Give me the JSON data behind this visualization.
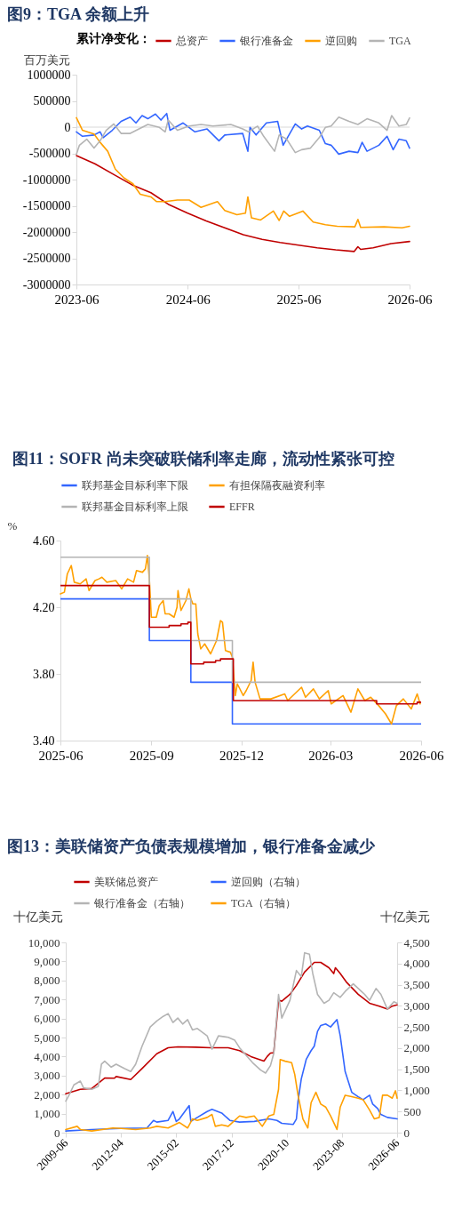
{
  "chart_data": [
    {
      "type": "line",
      "title": "图9：TGA 余额上升",
      "ylabel": "百万美元",
      "legend_title": "累计净变化：",
      "legend": "top",
      "xlim": [
        "2023-06",
        "2026-06"
      ],
      "xticks": [
        "2023-06",
        "2024-06",
        "2025-06",
        "2026-06"
      ],
      "ylim": [
        -3000000,
        1000000
      ],
      "yticks": [
        -3000000,
        -2500000,
        -2000000,
        -1500000,
        -1000000,
        -500000,
        0,
        500000,
        1000000
      ],
      "ref_lines": [
        {
          "axis": "y",
          "value": 0,
          "color": "#d9d9d9"
        }
      ],
      "series": [
        {
          "name": "总资产",
          "color": "#c00000",
          "x": [
            "2023-06-01",
            "2023-08-01",
            "2023-10-01",
            "2023-12-01",
            "2024-02-01",
            "2024-04-01",
            "2024-06-01",
            "2024-08-01",
            "2024-10-01",
            "2024-12-01",
            "2025-02-01",
            "2025-04-01",
            "2025-06-01",
            "2025-08-01",
            "2025-10-01",
            "2025-12-01",
            "2025-12-13",
            "2025-12-22",
            "2026-02-01",
            "2026-04-01",
            "2026-06-01"
          ],
          "values": [
            -542000,
            -700000,
            -900000,
            -1100000,
            -1250000,
            -1480000,
            -1640000,
            -1790000,
            -1920000,
            -2050000,
            -2140000,
            -2200000,
            -2250000,
            -2300000,
            -2340000,
            -2370000,
            -2280000,
            -2330000,
            -2300000,
            -2220000,
            -2180000
          ]
        },
        {
          "name": "银行准备金",
          "color": "#3366ff",
          "x": [
            "2023-06-01",
            "2023-06-21",
            "2023-07-29",
            "2023-08-18",
            "2023-08-28",
            "2023-09-27",
            "2023-10-26",
            "2023-11-25",
            "2023-12-14",
            "2024-01-03",
            "2024-01-22",
            "2024-02-16",
            "2024-03-05",
            "2024-03-24",
            "2024-04-04",
            "2024-05-17",
            "2024-06-25",
            "2024-08-04",
            "2024-09-12",
            "2024-10-01",
            "2024-11-29",
            "2024-12-16",
            "2024-12-23",
            "2025-01-12",
            "2025-02-15",
            "2025-03-24",
            "2025-04-11",
            "2025-05-21",
            "2025-06-11",
            "2025-06-30",
            "2025-08-08",
            "2025-08-28",
            "2025-09-16",
            "2025-10-11",
            "2025-11-14",
            "2025-12-13",
            "2025-12-27",
            "2026-01-12",
            "2026-02-20",
            "2026-03-19",
            "2026-04-08",
            "2026-04-27",
            "2026-05-21",
            "2026-06-01"
          ],
          "values": [
            -90000,
            -175000,
            -150000,
            -90000,
            -200000,
            -60000,
            110000,
            190000,
            80000,
            220000,
            160000,
            250000,
            135000,
            260000,
            -60000,
            80000,
            -90000,
            -35000,
            -260000,
            -150000,
            -120000,
            -460000,
            -5000,
            -150000,
            80000,
            110000,
            -345000,
            60000,
            -35000,
            20000,
            -60000,
            -315000,
            -345000,
            -515000,
            -460000,
            -485000,
            -290000,
            -460000,
            -345000,
            -175000,
            -430000,
            -230000,
            -260000,
            -400000
          ]
        },
        {
          "name": "逆回购",
          "color": "#ffa000",
          "x": [
            "2023-06-01",
            "2023-06-21",
            "2023-07-29",
            "2023-08-18",
            "2023-09-12",
            "2023-10-07",
            "2023-11-05",
            "2023-12-04",
            "2023-12-28",
            "2024-02-01",
            "2024-02-20",
            "2024-03-19",
            "2024-04-28",
            "2024-06-06",
            "2024-07-15",
            "2024-09-07",
            "2024-10-01",
            "2024-11-10",
            "2024-12-08",
            "2024-12-16",
            "2024-12-28",
            "2025-01-27",
            "2025-03-10",
            "2025-03-29",
            "2025-04-13",
            "2025-05-02",
            "2025-06-15",
            "2025-07-19",
            "2025-08-28",
            "2025-10-06",
            "2025-12-03",
            "2025-12-13",
            "2025-12-22",
            "2026-03-09",
            "2026-05-07",
            "2026-06-01"
          ],
          "values": [
            180000,
            -60000,
            -130000,
            -290000,
            -460000,
            -800000,
            -970000,
            -1080000,
            -1280000,
            -1330000,
            -1420000,
            -1420000,
            -1390000,
            -1390000,
            -1530000,
            -1420000,
            -1590000,
            -1670000,
            -1640000,
            -1330000,
            -1730000,
            -1770000,
            -1600000,
            -1780000,
            -1600000,
            -1700000,
            -1600000,
            -1810000,
            -1860000,
            -1890000,
            -1900000,
            -1760000,
            -1910000,
            -1900000,
            -1920000,
            -1890000
          ]
        },
        {
          "name": "TGA",
          "color": "#b4b4b4",
          "x": [
            "2023-06-01",
            "2023-06-11",
            "2023-07-05",
            "2023-07-29",
            "2023-08-18",
            "2023-09-07",
            "2023-10-02",
            "2023-10-26",
            "2023-11-25",
            "2024-01-03",
            "2024-01-22",
            "2024-02-29",
            "2024-03-19",
            "2024-03-29",
            "2024-04-28",
            "2024-06-06",
            "2024-07-15",
            "2024-08-23",
            "2024-10-21",
            "2024-11-29",
            "2024-12-18",
            "2025-01-17",
            "2025-02-06",
            "2025-03-14",
            "2025-03-29",
            "2025-04-23",
            "2025-05-21",
            "2025-06-11",
            "2025-07-10",
            "2025-08-08",
            "2025-08-28",
            "2025-09-16",
            "2025-10-11",
            "2025-11-14",
            "2025-12-13",
            "2026-01-12",
            "2026-02-20",
            "2026-03-19",
            "2026-04-03",
            "2026-04-27",
            "2026-05-21",
            "2026-06-01"
          ],
          "values": [
            -515000,
            -345000,
            -230000,
            -400000,
            -260000,
            -60000,
            60000,
            -120000,
            -120000,
            -5000,
            50000,
            -5000,
            -90000,
            135000,
            -60000,
            20000,
            50000,
            20000,
            50000,
            -35000,
            -90000,
            20000,
            -175000,
            -460000,
            -150000,
            -230000,
            -485000,
            -430000,
            -400000,
            -200000,
            -5000,
            20000,
            190000,
            110000,
            50000,
            160000,
            80000,
            -60000,
            220000,
            20000,
            50000,
            175000
          ]
        }
      ]
    },
    {
      "type": "line",
      "title": "图11：SOFR 尚未突破联储利率走廊，流动性紧张可控",
      "ylabel": "%",
      "legend": "top",
      "xlim": [
        "2025-06",
        "2026-06"
      ],
      "xticks": [
        "2025-06",
        "2025-09",
        "2025-12",
        "2026-03",
        "2026-06"
      ],
      "ylim": [
        3.4,
        4.6
      ],
      "yticks": [
        {
          "value": 3.4,
          "label": "3.40"
        },
        {
          "value": 3.8,
          "label": "3.80"
        },
        {
          "value": 4.2,
          "label": "4.20"
        },
        {
          "value": 4.6,
          "label": "4.60"
        }
      ],
      "series": [
        {
          "name": "联邦基金目标利率下限",
          "type": "step",
          "color": "#3366ff",
          "x": [
            "2025-06-01",
            "2025-08-30",
            "2025-10-11",
            "2025-11-22",
            "2026-06-01"
          ],
          "values": [
            4.25,
            4.0,
            3.75,
            3.5,
            3.5
          ]
        },
        {
          "name": "有担保隔夜融资利率",
          "color": "#ffa000",
          "x": [
            "2025-06-01",
            "2025-06-05",
            "2025-06-08",
            "2025-06-12",
            "2025-06-15",
            "2025-06-21",
            "2025-06-27",
            "2025-06-30",
            "2025-07-06",
            "2025-07-10",
            "2025-07-13",
            "2025-07-18",
            "2025-07-27",
            "2025-08-02",
            "2025-08-08",
            "2025-08-14",
            "2025-08-17",
            "2025-08-23",
            "2025-08-26",
            "2025-08-28",
            "2025-08-30",
            "2025-09-01",
            "2025-09-06",
            "2025-09-09",
            "2025-09-13",
            "2025-09-15",
            "2025-09-19",
            "2025-09-24",
            "2025-09-27",
            "2025-09-28",
            "2025-10-01",
            "2025-10-06",
            "2025-10-09",
            "2025-10-11",
            "2025-10-13",
            "2025-10-16",
            "2025-10-18",
            "2025-10-21",
            "2025-10-25",
            "2025-10-31",
            "2025-11-06",
            "2025-11-10",
            "2025-11-12",
            "2025-11-15",
            "2025-11-20",
            "2025-11-22",
            "2025-11-25",
            "2025-11-27",
            "2025-12-03",
            "2025-12-06",
            "2025-12-11",
            "2025-12-13",
            "2025-12-15",
            "2025-12-20",
            "2025-12-31",
            "2026-01-14",
            "2026-01-17",
            "2026-01-31",
            "2026-02-04",
            "2026-02-12",
            "2026-02-18",
            "2026-02-27",
            "2026-03-02",
            "2026-03-14",
            "2026-03-22",
            "2026-03-29",
            "2026-04-05",
            "2026-04-11",
            "2026-04-19",
            "2026-04-26",
            "2026-05-02",
            "2026-05-07",
            "2026-05-14",
            "2026-05-22",
            "2026-05-28",
            "2026-05-31"
          ],
          "values": [
            4.28,
            4.29,
            4.4,
            4.45,
            4.35,
            4.34,
            4.37,
            4.3,
            4.36,
            4.37,
            4.38,
            4.35,
            4.36,
            4.31,
            4.37,
            4.35,
            4.42,
            4.41,
            4.43,
            4.51,
            4.37,
            4.14,
            4.14,
            4.21,
            4.24,
            4.16,
            4.16,
            4.14,
            4.2,
            4.3,
            4.18,
            4.24,
            4.31,
            4.25,
            4.22,
            4.22,
            4.04,
            3.95,
            3.98,
            3.92,
            4.0,
            4.12,
            4.11,
            3.94,
            3.93,
            3.9,
            3.67,
            3.74,
            3.67,
            3.7,
            3.76,
            3.87,
            3.75,
            3.65,
            3.65,
            3.68,
            3.64,
            3.72,
            3.66,
            3.71,
            3.65,
            3.7,
            3.62,
            3.67,
            3.57,
            3.71,
            3.64,
            3.66,
            3.61,
            3.56,
            3.5,
            3.61,
            3.65,
            3.59,
            3.68,
            3.62
          ]
        },
        {
          "name": "联邦基金目标利率上限",
          "type": "step",
          "color": "#b4b4b4",
          "x": [
            "2025-06-01",
            "2025-08-30",
            "2025-10-11",
            "2025-11-22",
            "2026-06-01"
          ],
          "values": [
            4.5,
            4.25,
            4.0,
            3.75,
            3.75
          ]
        },
        {
          "name": "EFFR",
          "type": "step",
          "color": "#c00000",
          "x": [
            "2025-06-01",
            "2025-08-30",
            "2025-09-19",
            "2025-10-01",
            "2025-10-08",
            "2025-10-11",
            "2025-10-24",
            "2025-11-05",
            "2025-11-10",
            "2025-11-23",
            "2026-04-17",
            "2026-05-28",
            "2026-06-01"
          ],
          "values": [
            4.33,
            4.08,
            4.09,
            4.1,
            4.11,
            3.86,
            3.87,
            3.88,
            3.89,
            3.64,
            3.62,
            3.63,
            3.63
          ]
        }
      ]
    },
    {
      "type": "line",
      "title": "图13：美联储资产负债表规模增加，银行准备金减少",
      "ylabel": "十亿美元",
      "y2label": "十亿美元",
      "legend": "top",
      "xlim": [
        "2009-06",
        "2026-06"
      ],
      "xticks": [
        "2009-06",
        "2012-04",
        "2015-02",
        "2017-12",
        "2020-10",
        "2023-08",
        "2026-06"
      ],
      "ylim": [
        0,
        10000
      ],
      "yticks": [
        0,
        {
          "value": 1000,
          "label": "1,000"
        },
        {
          "value": 2000,
          "label": "2,000"
        },
        {
          "value": 3000,
          "label": "3,000"
        },
        {
          "value": 4000,
          "label": "4,000"
        },
        {
          "value": 5000,
          "label": "5,000"
        },
        {
          "value": 6000,
          "label": "6,000"
        },
        {
          "value": 7000,
          "label": "7,000"
        },
        {
          "value": 8000,
          "label": "8,000"
        },
        {
          "value": 9000,
          "label": "9,000"
        },
        {
          "value": 10000,
          "label": "10,000"
        }
      ],
      "y2lim": [
        0,
        4500
      ],
      "y2ticks": [
        0,
        500,
        {
          "value": 1000,
          "label": "1,000"
        },
        {
          "value": 1500,
          "label": "1,500"
        },
        {
          "value": 2000,
          "label": "2,000"
        },
        {
          "value": 2500,
          "label": "2,500"
        },
        {
          "value": 3000,
          "label": "3,000"
        },
        {
          "value": 3500,
          "label": "3,500"
        },
        {
          "value": 4000,
          "label": "4,000"
        },
        {
          "value": 4500,
          "label": "4,500"
        }
      ],
      "series": [
        {
          "name": "美联储总资产",
          "color": "#c00000",
          "x": [
            "2009-06",
            "2010-03",
            "2010-10",
            "2011-06",
            "2011-12",
            "2012-01",
            "2012-10",
            "2013-05",
            "2014-02",
            "2014-09",
            "2015-03",
            "2016-02",
            "2016-11",
            "2017-10",
            "2018-05",
            "2018-12",
            "2019-08",
            "2019-10",
            "2019-12",
            "2020-02",
            "2020-05",
            "2020-07",
            "2020-12",
            "2021-04",
            "2021-09",
            "2022-03",
            "2022-07",
            "2022-12",
            "2023-03",
            "2023-04",
            "2023-07",
            "2023-11",
            "2024-06",
            "2025-01",
            "2025-07",
            "2025-12",
            "2026-03",
            "2026-06"
          ],
          "values": [
            2040,
            2280,
            2320,
            2870,
            2860,
            2950,
            2790,
            3370,
            4150,
            4460,
            4510,
            4490,
            4460,
            4460,
            4310,
            4000,
            3760,
            4000,
            4180,
            4200,
            6960,
            6910,
            7270,
            7740,
            8440,
            8950,
            8950,
            8670,
            8360,
            8670,
            8360,
            7890,
            7270,
            6800,
            6650,
            6490,
            6650,
            6720
          ]
        },
        {
          "name": "逆回购（右轴）",
          "axis": "y2",
          "color": "#3366ff",
          "x": [
            "2009-06",
            "2010-10",
            "2012-04",
            "2013-08",
            "2013-12",
            "2014-02",
            "2014-09",
            "2014-12",
            "2015-02",
            "2015-04",
            "2015-10",
            "2015-11",
            "2016-03",
            "2016-09",
            "2016-12",
            "2017-06",
            "2017-11",
            "2018-05",
            "2019-02",
            "2019-11",
            "2020-04",
            "2020-07",
            "2021-02",
            "2021-04",
            "2021-05",
            "2021-07",
            "2021-10",
            "2022-01",
            "2022-03",
            "2022-05",
            "2022-07",
            "2022-10",
            "2023-01",
            "2023-05",
            "2023-07",
            "2023-10",
            "2024-02",
            "2024-06",
            "2024-09",
            "2025-01",
            "2025-03",
            "2025-06",
            "2025-08",
            "2025-12",
            "2026-06"
          ],
          "values": [
            40,
            75,
            100,
            110,
            290,
            250,
            290,
            500,
            265,
            325,
            640,
            265,
            360,
            500,
            550,
            465,
            290,
            250,
            265,
            325,
            290,
            220,
            195,
            325,
            745,
            1270,
            1730,
            1940,
            2045,
            2395,
            2535,
            2570,
            2500,
            2675,
            2290,
            1445,
            955,
            850,
            780,
            885,
            675,
            570,
            430,
            360,
            325
          ]
        },
        {
          "name": "银行准备金（右轴）",
          "axis": "y2",
          "color": "#b4b4b4",
          "x": [
            "2009-06",
            "2009-08",
            "2009-11",
            "2010-03",
            "2010-05",
            "2010-10",
            "2011-02",
            "2011-04",
            "2011-06",
            "2011-10",
            "2012-01",
            "2012-06",
            "2012-10",
            "2013-01",
            "2013-05",
            "2013-10",
            "2014-02",
            "2014-06",
            "2014-09",
            "2014-12",
            "2015-03",
            "2015-06",
            "2015-09",
            "2015-12",
            "2016-03",
            "2016-09",
            "2016-12",
            "2017-04",
            "2017-10",
            "2018-02",
            "2018-05",
            "2018-09",
            "2019-01",
            "2019-06",
            "2019-09",
            "2019-12",
            "2020-02",
            "2020-05",
            "2020-07",
            "2020-12",
            "2021-04",
            "2021-07",
            "2021-09",
            "2021-12",
            "2022-02",
            "2022-05",
            "2022-09",
            "2022-12",
            "2023-03",
            "2023-07",
            "2023-10",
            "2024-03",
            "2024-08",
            "2024-10",
            "2025-01",
            "2025-05",
            "2025-08",
            "2025-12",
            "2026-04",
            "2026-06"
          ],
          "values": [
            745,
            885,
            1130,
            1220,
            1060,
            1025,
            1095,
            1620,
            1690,
            1550,
            1620,
            1520,
            1445,
            1620,
            2045,
            2500,
            2640,
            2750,
            2815,
            2605,
            2710,
            2570,
            2675,
            2430,
            2465,
            2290,
            1975,
            2290,
            2255,
            2185,
            2010,
            1830,
            1655,
            1480,
            1410,
            1585,
            1870,
            3270,
            2710,
            3130,
            3835,
            3690,
            4255,
            4220,
            3765,
            3270,
            3060,
            3130,
            3310,
            3200,
            3340,
            3520,
            3340,
            3270,
            3130,
            3410,
            3270,
            2920,
            3095,
            3060
          ]
        },
        {
          "name": "TGA（右轴）",
          "axis": "y2",
          "color": "#ffa000",
          "x": [
            "2009-06",
            "2010-01",
            "2010-03",
            "2010-10",
            "2011-11",
            "2012-04",
            "2013-01",
            "2013-10",
            "2014-02",
            "2014-09",
            "2015-04",
            "2015-09",
            "2015-12",
            "2016-03",
            "2016-09",
            "2016-12",
            "2017-02",
            "2017-06",
            "2017-10",
            "2018-01",
            "2018-05",
            "2018-09",
            "2019-02",
            "2019-07",
            "2019-11",
            "2020-02",
            "2020-05",
            "2020-06",
            "2020-09",
            "2021-01",
            "2021-03",
            "2021-05",
            "2021-08",
            "2021-11",
            "2022-01",
            "2022-04",
            "2022-07",
            "2022-10",
            "2023-01",
            "2023-05",
            "2023-07",
            "2023-10",
            "2024-02",
            "2024-06",
            "2024-09",
            "2025-01",
            "2025-04",
            "2025-07",
            "2025-09",
            "2025-12",
            "2026-03",
            "2026-05",
            "2026-06"
          ],
          "values": [
            75,
            150,
            75,
            40,
            110,
            100,
            75,
            110,
            150,
            110,
            240,
            110,
            325,
            290,
            360,
            430,
            150,
            185,
            150,
            255,
            395,
            360,
            395,
            150,
            395,
            430,
            1025,
            1730,
            1690,
            1655,
            1375,
            885,
            325,
            110,
            710,
            955,
            675,
            605,
            395,
            75,
            605,
            885,
            850,
            815,
            780,
            535,
            325,
            360,
            885,
            885,
            815,
            990,
            815
          ]
        }
      ]
    }
  ]
}
